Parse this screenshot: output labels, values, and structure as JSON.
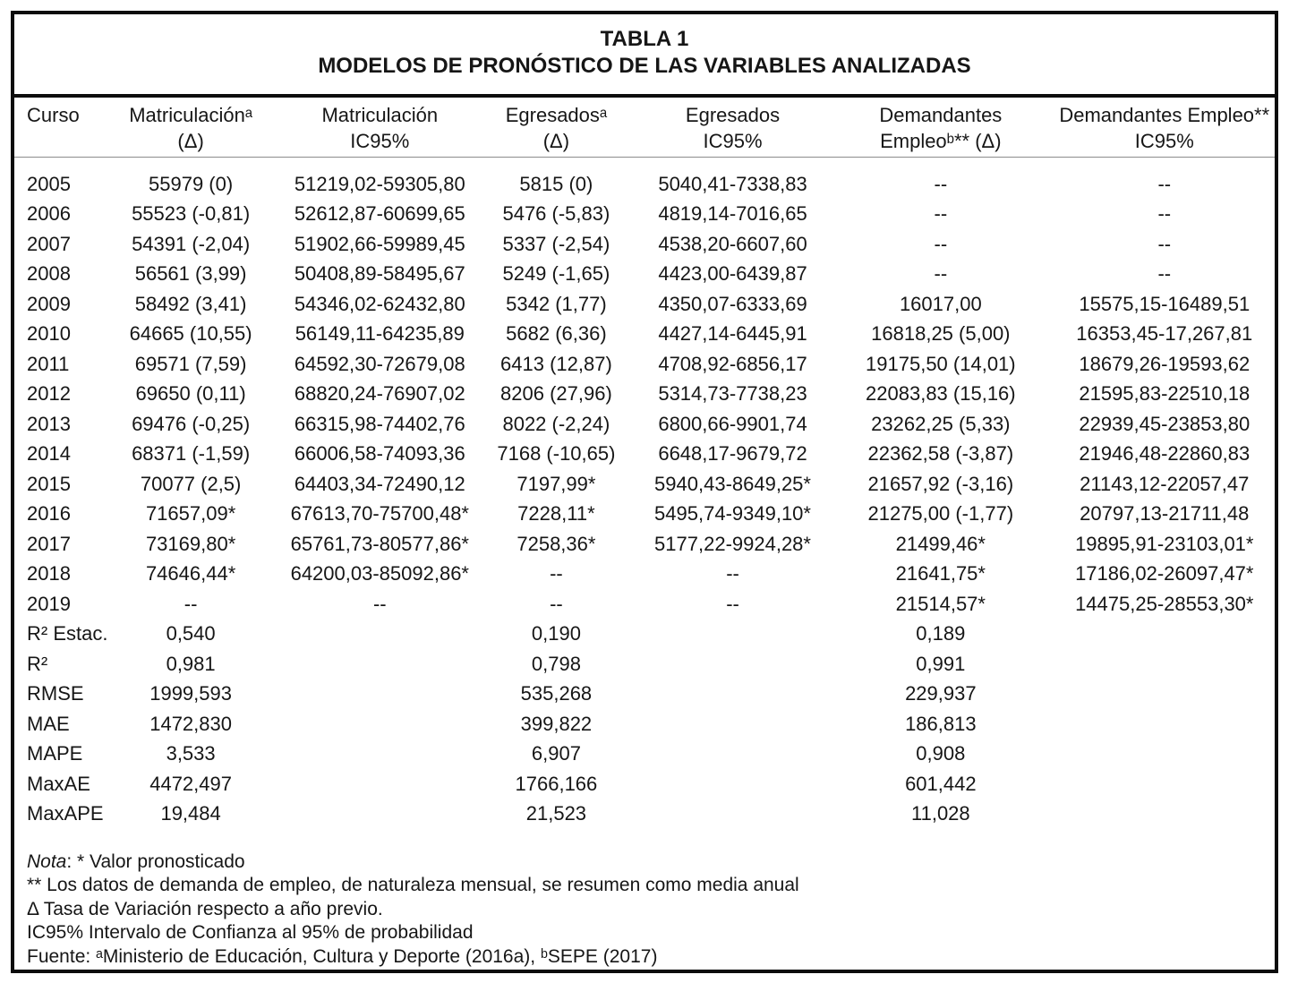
{
  "table": {
    "title_line1": "TABLA 1",
    "title_line2": "MODELOS DE PRONÓSTICO DE LAS VARIABLES ANALIZADAS",
    "columns": [
      {
        "l1": "Curso",
        "l2": ""
      },
      {
        "l1": "Matriculaciónᵃ",
        "l2": "(Δ)"
      },
      {
        "l1": "Matriculación",
        "l2": "IC95%"
      },
      {
        "l1": "Egresadosᵃ",
        "l2": "(Δ)"
      },
      {
        "l1": "Egresados",
        "l2": "IC95%"
      },
      {
        "l1": "Demandantes",
        "l2": "Empleoᵇ** (Δ)"
      },
      {
        "l1": "Demandantes Empleo**",
        "l2": "IC95%"
      }
    ],
    "rows": [
      [
        "2005",
        "55979 (0)",
        "51219,02-59305,80",
        "5815 (0)",
        "5040,41-7338,83",
        "--",
        "--"
      ],
      [
        "2006",
        "55523 (-0,81)",
        "52612,87-60699,65",
        "5476 (-5,83)",
        "4819,14-7016,65",
        "--",
        "--"
      ],
      [
        "2007",
        "54391 (-2,04)",
        "51902,66-59989,45",
        "5337 (-2,54)",
        "4538,20-6607,60",
        "--",
        "--"
      ],
      [
        "2008",
        "56561 (3,99)",
        "50408,89-58495,67",
        "5249 (-1,65)",
        "4423,00-6439,87",
        "--",
        "--"
      ],
      [
        "2009",
        "58492 (3,41)",
        "54346,02-62432,80",
        "5342 (1,77)",
        "4350,07-6333,69",
        "16017,00",
        "15575,15-16489,51"
      ],
      [
        "2010",
        "64665 (10,55)",
        "56149,11-64235,89",
        "5682 (6,36)",
        "4427,14-6445,91",
        "16818,25 (5,00)",
        "16353,45-17,267,81"
      ],
      [
        "2011",
        "69571 (7,59)",
        "64592,30-72679,08",
        "6413 (12,87)",
        "4708,92-6856,17",
        "19175,50 (14,01)",
        "18679,26-19593,62"
      ],
      [
        "2012",
        "69650 (0,11)",
        "68820,24-76907,02",
        "8206 (27,96)",
        "5314,73-7738,23",
        "22083,83 (15,16)",
        "21595,83-22510,18"
      ],
      [
        "2013",
        "69476 (-0,25)",
        "66315,98-74402,76",
        "8022 (-2,24)",
        "6800,66-9901,74",
        "23262,25 (5,33)",
        "22939,45-23853,80"
      ],
      [
        "2014",
        "68371 (-1,59)",
        "66006,58-74093,36",
        "7168 (-10,65)",
        "6648,17-9679,72",
        "22362,58 (-3,87)",
        "21946,48-22860,83"
      ],
      [
        "2015",
        "70077 (2,5)",
        "64403,34-72490,12",
        "7197,99*",
        "5940,43-8649,25*",
        "21657,92 (-3,16)",
        "21143,12-22057,47"
      ],
      [
        "2016",
        "71657,09*",
        "67613,70-75700,48*",
        "7228,11*",
        "5495,74-9349,10*",
        "21275,00 (-1,77)",
        "20797,13-21711,48"
      ],
      [
        "2017",
        "73169,80*",
        "65761,73-80577,86*",
        "7258,36*",
        "5177,22-9924,28*",
        "21499,46*",
        "19895,91-23103,01*"
      ],
      [
        "2018",
        "74646,44*",
        "64200,03-85092,86*",
        "--",
        "--",
        "21641,75*",
        "17186,02-26097,47*"
      ],
      [
        "2019",
        "--",
        "--",
        "--",
        "--",
        "21514,57*",
        "14475,25-28553,30*"
      ],
      [
        "R² Estac.",
        "0,540",
        "",
        "0,190",
        "",
        "0,189",
        ""
      ],
      [
        "R²",
        "0,981",
        "",
        "0,798",
        "",
        "0,991",
        ""
      ],
      [
        "RMSE",
        "1999,593",
        "",
        "535,268",
        "",
        "229,937",
        ""
      ],
      [
        "MAE",
        "1472,830",
        "",
        "399,822",
        "",
        "186,813",
        ""
      ],
      [
        "MAPE",
        "3,533",
        "",
        "6,907",
        "",
        "0,908",
        ""
      ],
      [
        "MaxAE",
        "4472,497",
        "",
        "1766,166",
        "",
        "601,442",
        ""
      ],
      [
        "MaxAPE",
        "19,484",
        "",
        "21,523",
        "",
        "11,028",
        ""
      ]
    ]
  },
  "notes": {
    "nota_label": "Nota",
    "nota_rest": ": * Valor pronosticado",
    "line2": "** Los datos de demanda de empleo, de naturaleza mensual, se resumen como media anual",
    "line3": "Δ Tasa de Variación respecto a año previo.",
    "line4": "IC95% Intervalo de Confianza al 95% de probabilidad",
    "line5": "Fuente: ᵃMinisterio de Educación, Cultura y Deporte (2016a), ᵇSEPE (2017)"
  }
}
